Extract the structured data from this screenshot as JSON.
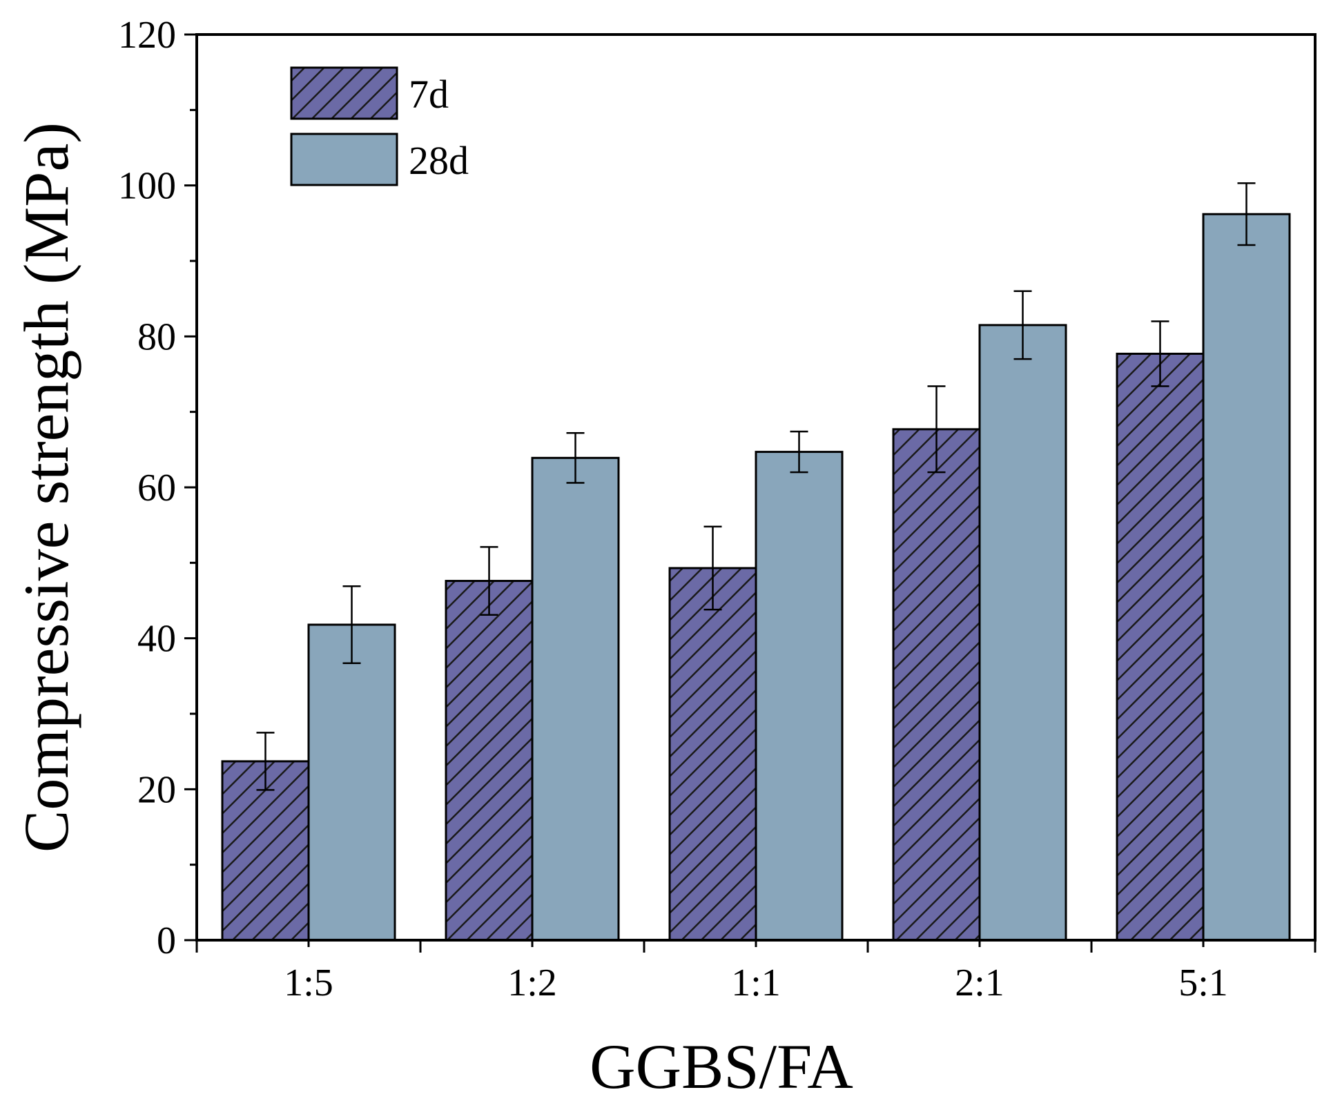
{
  "chart_data": {
    "type": "bar",
    "title": "",
    "xlabel": "GGBS/FA",
    "ylabel": "Compressive strength (MPa)",
    "categories": [
      "1:5",
      "1:2",
      "1:1",
      "2:1",
      "5:1"
    ],
    "ylim": [
      0,
      120
    ],
    "yticks": [
      0,
      20,
      40,
      60,
      80,
      100,
      120
    ],
    "grid": false,
    "legend_position": "top-left",
    "series": [
      {
        "name": "7d",
        "values": [
          23.7,
          47.6,
          49.3,
          67.7,
          77.7
        ],
        "errors": [
          3.8,
          4.5,
          5.5,
          5.7,
          4.3
        ],
        "color": "#6b6aa6",
        "pattern": "diagonal-hatch"
      },
      {
        "name": "28d",
        "values": [
          41.8,
          63.9,
          64.7,
          81.5,
          96.2
        ],
        "errors": [
          5.1,
          3.3,
          2.7,
          4.5,
          4.1
        ],
        "color": "#89a6bb",
        "pattern": "solid"
      }
    ]
  }
}
